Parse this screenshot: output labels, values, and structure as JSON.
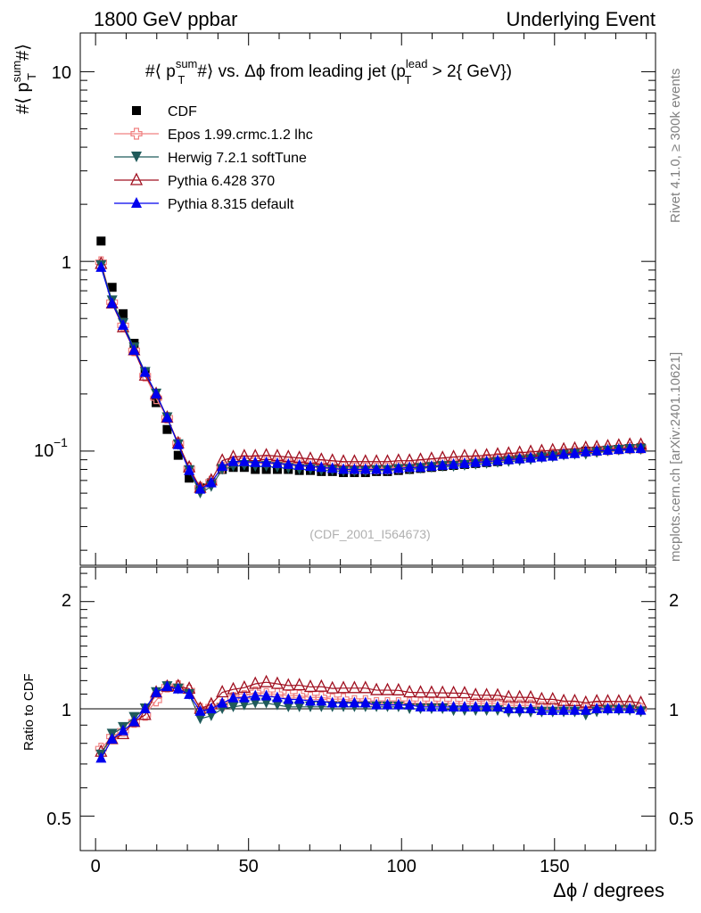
{
  "header": {
    "left": "1800 GeV ppbar",
    "right": "Underlying Event"
  },
  "side_labels": {
    "rivet": "Rivet 4.1.0, ≥ 300k events",
    "mcplots": "mcplots.cern.ch [arXiv:2401.10621]"
  },
  "watermark": "(CDF_2001_I564673)",
  "colors": {
    "CDF": "#000000",
    "Epos": "#f08080",
    "Herwig": "#1f5a5a",
    "Pythia6": "#a01020",
    "Pythia8": "#0000ee"
  },
  "chart_data": [
    {
      "type": "scatter",
      "panel": "main",
      "title": "#⟨ p_T^sum #⟩ vs. Δϕ from leading jet  (p_T^lead > 2{ GeV})",
      "title_parts": {
        "prefix": "#⟨ p",
        "sup1": "sum",
        "sub1": "T",
        "middle": "#⟩ vs. Δϕ from leading jet  (p",
        "sup2": "lead",
        "sub2": "T",
        "suffix": " > 2{ GeV})"
      },
      "ylabel": "#⟨ p_T^sum #⟩",
      "ylabel_parts": {
        "prefix": "#⟨ p",
        "sup": "sum",
        "sub": "T",
        "suffix": "#⟩"
      },
      "yscale": "log",
      "ylim": [
        0.025,
        16
      ],
      "xlim": [
        -5,
        183
      ],
      "ytick_labels": [
        "1",
        "10"
      ],
      "ytick_label_exp": {
        "base": "10",
        "exp": "−1"
      },
      "legend_position": "top-left",
      "x": [
        1.8,
        5.4,
        9.0,
        12.6,
        16.2,
        19.8,
        23.4,
        27.0,
        30.6,
        34.2,
        37.8,
        41.4,
        45.0,
        48.6,
        52.2,
        55.8,
        59.4,
        63.0,
        66.6,
        70.2,
        73.8,
        77.4,
        81.0,
        84.6,
        88.2,
        91.8,
        95.4,
        99.0,
        102.6,
        106.2,
        109.8,
        113.4,
        117.0,
        120.6,
        124.2,
        127.8,
        131.4,
        135.0,
        138.6,
        142.2,
        145.8,
        149.4,
        153.0,
        156.6,
        160.2,
        163.8,
        167.4,
        171.0,
        174.6,
        178.2
      ],
      "series": [
        {
          "name": "CDF",
          "marker": "square",
          "color": "#000000",
          "values": [
            1.28,
            0.73,
            0.53,
            0.37,
            0.26,
            0.18,
            0.13,
            0.095,
            0.072,
            0.064,
            0.068,
            0.08,
            0.082,
            0.082,
            0.08,
            0.08,
            0.08,
            0.08,
            0.079,
            0.079,
            0.078,
            0.078,
            0.077,
            0.077,
            0.077,
            0.078,
            0.078,
            0.079,
            0.08,
            0.081,
            0.082,
            0.083,
            0.084,
            0.085,
            0.086,
            0.087,
            0.088,
            0.09,
            0.091,
            0.092,
            0.094,
            0.095,
            0.097,
            0.098,
            0.1,
            0.1,
            0.101,
            0.102,
            0.103,
            0.104
          ]
        },
        {
          "name": "Epos 1.99.crmc.1.2 lhc",
          "marker": "open-cross",
          "color": "#f08080",
          "values": [
            0.99,
            0.61,
            0.46,
            0.34,
            0.25,
            0.19,
            0.15,
            0.11,
            0.081,
            0.064,
            0.069,
            0.082,
            0.088,
            0.089,
            0.089,
            0.088,
            0.088,
            0.087,
            0.086,
            0.085,
            0.084,
            0.083,
            0.082,
            0.081,
            0.081,
            0.081,
            0.081,
            0.082,
            0.083,
            0.084,
            0.085,
            0.086,
            0.087,
            0.088,
            0.089,
            0.09,
            0.091,
            0.092,
            0.093,
            0.094,
            0.095,
            0.096,
            0.098,
            0.099,
            0.1,
            0.101,
            0.102,
            0.103,
            0.104,
            0.104
          ]
        },
        {
          "name": "Herwig 7.2.1 softTune",
          "marker": "triangle-down",
          "color": "#1f5a5a",
          "values": [
            0.95,
            0.62,
            0.47,
            0.35,
            0.26,
            0.2,
            0.15,
            0.108,
            0.079,
            0.06,
            0.065,
            0.08,
            0.083,
            0.084,
            0.083,
            0.083,
            0.082,
            0.081,
            0.08,
            0.08,
            0.079,
            0.079,
            0.078,
            0.078,
            0.078,
            0.079,
            0.079,
            0.08,
            0.08,
            0.081,
            0.082,
            0.083,
            0.083,
            0.084,
            0.085,
            0.086,
            0.087,
            0.088,
            0.089,
            0.09,
            0.092,
            0.093,
            0.095,
            0.096,
            0.096,
            0.098,
            0.1,
            0.101,
            0.102,
            0.102
          ]
        },
        {
          "name": "Pythia 6.428 370",
          "marker": "open-triangle-up",
          "color": "#a01020",
          "values": [
            0.97,
            0.6,
            0.45,
            0.34,
            0.25,
            0.2,
            0.15,
            0.11,
            0.082,
            0.064,
            0.07,
            0.089,
            0.093,
            0.094,
            0.094,
            0.095,
            0.094,
            0.093,
            0.092,
            0.091,
            0.09,
            0.089,
            0.088,
            0.088,
            0.088,
            0.088,
            0.088,
            0.089,
            0.089,
            0.09,
            0.091,
            0.092,
            0.093,
            0.094,
            0.094,
            0.095,
            0.096,
            0.097,
            0.098,
            0.099,
            0.1,
            0.101,
            0.102,
            0.103,
            0.104,
            0.105,
            0.106,
            0.107,
            0.108,
            0.108
          ]
        },
        {
          "name": "Pythia 8.315 default",
          "marker": "triangle-up",
          "color": "#0000ee",
          "values": [
            0.93,
            0.6,
            0.46,
            0.34,
            0.26,
            0.2,
            0.15,
            0.108,
            0.079,
            0.063,
            0.068,
            0.083,
            0.088,
            0.088,
            0.087,
            0.087,
            0.086,
            0.085,
            0.084,
            0.083,
            0.082,
            0.081,
            0.08,
            0.08,
            0.08,
            0.08,
            0.08,
            0.081,
            0.082,
            0.082,
            0.083,
            0.084,
            0.085,
            0.086,
            0.087,
            0.088,
            0.089,
            0.09,
            0.091,
            0.092,
            0.093,
            0.094,
            0.096,
            0.097,
            0.099,
            0.1,
            0.101,
            0.102,
            0.103,
            0.103
          ]
        }
      ]
    },
    {
      "type": "line",
      "panel": "ratio",
      "ylabel": "Ratio to CDF",
      "xlabel": "Δϕ / degrees",
      "yscale": "log",
      "ylim": [
        0.4,
        2.5
      ],
      "xlim": [
        -5,
        183
      ],
      "ytick_labels": [
        "0.5",
        "1",
        "2"
      ],
      "xtick_labels": [
        "0",
        "50",
        "100",
        "150"
      ],
      "reference_line": 1
    }
  ]
}
